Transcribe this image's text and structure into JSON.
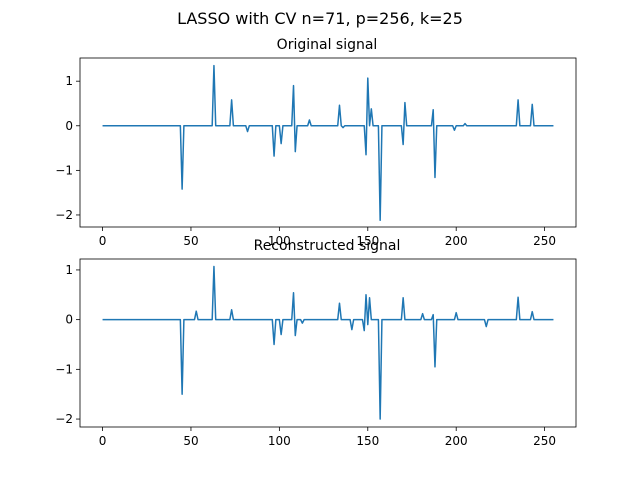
{
  "suptitle": "LASSO with CV n=71, p=256, k=25",
  "chart_data": [
    {
      "type": "line",
      "title": "Original signal",
      "xlabel": "",
      "ylabel": "",
      "xlim": [
        -12.75,
        267.75
      ],
      "ylim": [
        -2.27,
        1.52
      ],
      "xticks": [
        0,
        50,
        100,
        150,
        200,
        250
      ],
      "yticks": [
        -2,
        -1,
        0,
        1
      ],
      "ytick_labels": [
        "−2",
        "−1",
        "0",
        "1"
      ],
      "grid": false,
      "color": "#1f77b4",
      "series": [
        {
          "points": [
            [
              0,
              0
            ],
            [
              44,
              0
            ],
            [
              45,
              -1.42
            ],
            [
              46,
              0
            ],
            [
              62,
              0
            ],
            [
              63,
              1.35
            ],
            [
              64,
              0
            ],
            [
              72,
              0
            ],
            [
              73,
              0.58
            ],
            [
              74,
              0
            ],
            [
              81,
              0
            ],
            [
              82,
              -0.13
            ],
            [
              83,
              0
            ],
            [
              96,
              0
            ],
            [
              97,
              -0.68
            ],
            [
              98,
              0
            ],
            [
              100,
              0
            ],
            [
              101,
              -0.4
            ],
            [
              102,
              0
            ],
            [
              107,
              0
            ],
            [
              108,
              0.9
            ],
            [
              109,
              -0.58
            ],
            [
              110,
              0
            ],
            [
              116,
              0
            ],
            [
              117,
              0.13
            ],
            [
              118,
              0
            ],
            [
              133,
              0
            ],
            [
              134,
              0.46
            ],
            [
              135,
              0
            ],
            [
              136,
              -0.04
            ],
            [
              137,
              0
            ],
            [
              148,
              0
            ],
            [
              149,
              -0.65
            ],
            [
              150,
              1.07
            ],
            [
              151,
              0
            ],
            [
              152,
              0.38
            ],
            [
              153,
              0
            ],
            [
              156,
              0
            ],
            [
              157,
              -2.12
            ],
            [
              158,
              0
            ],
            [
              169,
              0
            ],
            [
              170,
              -0.42
            ],
            [
              171,
              0.52
            ],
            [
              172,
              0
            ],
            [
              186,
              0
            ],
            [
              187,
              0.36
            ],
            [
              188,
              -1.16
            ],
            [
              189,
              0
            ],
            [
              198,
              0
            ],
            [
              199,
              -0.1
            ],
            [
              200,
              0
            ],
            [
              204,
              0
            ],
            [
              205,
              0.05
            ],
            [
              206,
              0
            ],
            [
              234,
              0
            ],
            [
              235,
              0.58
            ],
            [
              236,
              0
            ],
            [
              242,
              0
            ],
            [
              243,
              0.48
            ],
            [
              244,
              0
            ],
            [
              255,
              0
            ]
          ]
        }
      ]
    },
    {
      "type": "line",
      "title": "Reconstructed signal",
      "xlabel": "",
      "ylabel": "",
      "xlim": [
        -12.75,
        267.75
      ],
      "ylim": [
        -2.16,
        1.22
      ],
      "xticks": [
        0,
        50,
        100,
        150,
        200,
        250
      ],
      "yticks": [
        -2,
        -1,
        0,
        1
      ],
      "ytick_labels": [
        "−2",
        "−1",
        "0",
        "1"
      ],
      "grid": false,
      "color": "#1f77b4",
      "series": [
        {
          "points": [
            [
              0,
              0
            ],
            [
              44,
              0
            ],
            [
              45,
              -1.5
            ],
            [
              46,
              0
            ],
            [
              52,
              0
            ],
            [
              53,
              0.17
            ],
            [
              54,
              0
            ],
            [
              62,
              0
            ],
            [
              63,
              1.07
            ],
            [
              64,
              0
            ],
            [
              72,
              0
            ],
            [
              73,
              0.2
            ],
            [
              74,
              0
            ],
            [
              96,
              0
            ],
            [
              97,
              -0.5
            ],
            [
              98,
              0
            ],
            [
              100,
              0
            ],
            [
              101,
              -0.3
            ],
            [
              102,
              0
            ],
            [
              107,
              0
            ],
            [
              108,
              0.54
            ],
            [
              109,
              -0.32
            ],
            [
              110,
              0
            ],
            [
              112,
              0
            ],
            [
              113,
              -0.07
            ],
            [
              114,
              0
            ],
            [
              133,
              0
            ],
            [
              134,
              0.33
            ],
            [
              135,
              0
            ],
            [
              140,
              0
            ],
            [
              141,
              -0.2
            ],
            [
              142,
              0
            ],
            [
              147,
              0
            ],
            [
              148,
              -0.22
            ],
            [
              149,
              0.5
            ],
            [
              150,
              -0.1
            ],
            [
              151,
              0.44
            ],
            [
              152,
              0
            ],
            [
              156,
              0
            ],
            [
              157,
              -2.0
            ],
            [
              158,
              0
            ],
            [
              169,
              0
            ],
            [
              170,
              0.44
            ],
            [
              171,
              0
            ],
            [
              180,
              0
            ],
            [
              181,
              0.12
            ],
            [
              182,
              0
            ],
            [
              186,
              0
            ],
            [
              187,
              0.1
            ],
            [
              188,
              -0.95
            ],
            [
              189,
              0
            ],
            [
              199,
              0
            ],
            [
              200,
              0.14
            ],
            [
              201,
              0
            ],
            [
              216,
              0
            ],
            [
              217,
              -0.14
            ],
            [
              218,
              0
            ],
            [
              234,
              0
            ],
            [
              235,
              0.45
            ],
            [
              236,
              0
            ],
            [
              242,
              0
            ],
            [
              243,
              0.16
            ],
            [
              244,
              0
            ],
            [
              255,
              0
            ]
          ]
        }
      ]
    }
  ]
}
